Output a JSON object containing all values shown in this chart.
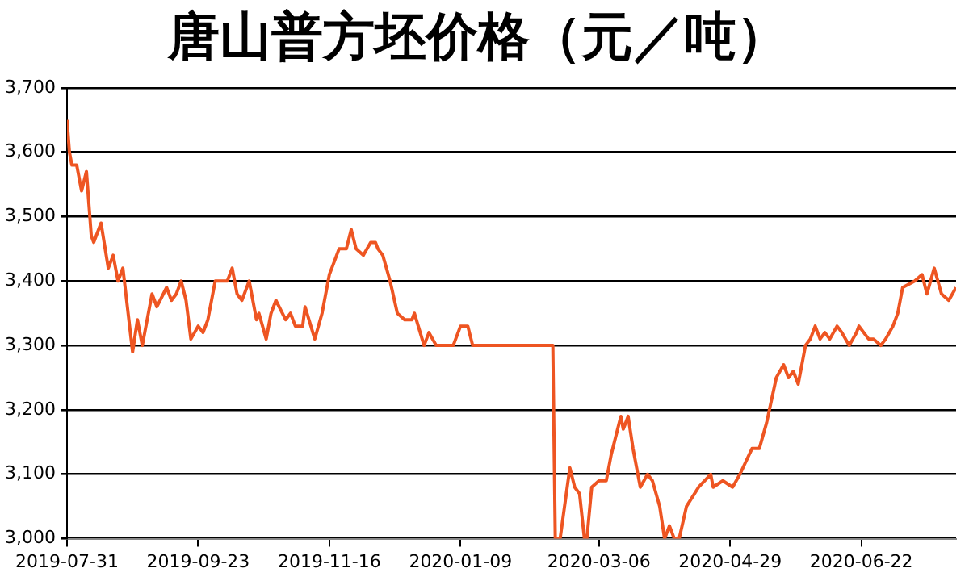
{
  "chart_data": {
    "type": "line",
    "title": "唐山普方坯价格（元／吨）",
    "color": "#ee5522",
    "marker": "none",
    "grid": "y",
    "legend": false,
    "x": [
      "2019-07-31",
      "2019-08-01",
      "2019-08-02",
      "2019-08-04",
      "2019-08-06",
      "2019-08-08",
      "2019-08-10",
      "2019-08-11",
      "2019-08-14",
      "2019-08-17",
      "2019-08-19",
      "2019-08-21",
      "2019-08-23",
      "2019-08-27",
      "2019-08-29",
      "2019-08-31",
      "2019-09-01",
      "2019-09-04",
      "2019-09-06",
      "2019-09-10",
      "2019-09-12",
      "2019-09-14",
      "2019-09-16",
      "2019-09-18",
      "2019-09-20",
      "2019-09-23",
      "2019-09-25",
      "2019-09-27",
      "2019-09-30",
      "2019-10-05",
      "2019-10-07",
      "2019-10-09",
      "2019-10-11",
      "2019-10-14",
      "2019-10-17",
      "2019-10-18",
      "2019-10-21",
      "2019-10-23",
      "2019-10-25",
      "2019-10-29",
      "2019-10-31",
      "2019-11-02",
      "2019-11-05",
      "2019-11-06",
      "2019-11-10",
      "2019-11-13",
      "2019-11-16",
      "2019-11-18",
      "2019-11-20",
      "2019-11-23",
      "2019-11-25",
      "2019-11-27",
      "2019-11-30",
      "2019-12-03",
      "2019-12-05",
      "2019-12-06",
      "2019-12-08",
      "2019-12-11",
      "2019-12-14",
      "2019-12-17",
      "2019-12-20",
      "2019-12-21",
      "2019-12-25",
      "2019-12-27",
      "2019-12-30",
      "2020-01-06",
      "2020-01-09",
      "2020-01-12",
      "2020-01-14",
      "2020-01-17",
      "2020-02-16",
      "2020-02-17",
      "2020-02-19",
      "2020-02-23",
      "2020-02-25",
      "2020-02-27",
      "2020-02-29",
      "2020-03-01",
      "2020-03-03",
      "2020-03-06",
      "2020-03-09",
      "2020-03-11",
      "2020-03-15",
      "2020-03-16",
      "2020-03-18",
      "2020-03-20",
      "2020-03-23",
      "2020-03-26",
      "2020-03-28",
      "2020-03-31",
      "2020-04-02",
      "2020-04-04",
      "2020-04-06",
      "2020-04-08",
      "2020-04-11",
      "2020-04-16",
      "2020-04-21",
      "2020-04-22",
      "2020-04-26",
      "2020-04-30",
      "2020-05-03",
      "2020-05-08",
      "2020-05-11",
      "2020-05-14",
      "2020-05-18",
      "2020-05-21",
      "2020-05-23",
      "2020-05-25",
      "2020-05-27",
      "2020-05-30",
      "2020-06-01",
      "2020-06-03",
      "2020-06-05",
      "2020-06-07",
      "2020-06-09",
      "2020-06-12",
      "2020-06-14",
      "2020-06-17",
      "2020-06-20",
      "2020-06-21",
      "2020-06-23",
      "2020-06-25",
      "2020-06-27",
      "2020-06-30",
      "2020-07-02",
      "2020-07-05",
      "2020-07-07",
      "2020-07-09",
      "2020-07-14",
      "2020-07-17",
      "2020-07-19",
      "2020-07-22",
      "2020-07-25",
      "2020-07-28",
      "2020-07-31"
    ],
    "values": [
      3650,
      3600,
      3580,
      3580,
      3540,
      3570,
      3470,
      3460,
      3490,
      3420,
      3440,
      3400,
      3420,
      3290,
      3340,
      3300,
      3320,
      3380,
      3360,
      3390,
      3370,
      3380,
      3400,
      3370,
      3310,
      3330,
      3320,
      3340,
      3400,
      3400,
      3420,
      3380,
      3370,
      3400,
      3340,
      3350,
      3310,
      3350,
      3370,
      3340,
      3350,
      3330,
      3330,
      3360,
      3310,
      3350,
      3410,
      3430,
      3450,
      3450,
      3480,
      3450,
      3440,
      3460,
      3460,
      3450,
      3440,
      3400,
      3350,
      3340,
      3340,
      3350,
      3300,
      3320,
      3300,
      3300,
      3330,
      3330,
      3300,
      3300,
      3300,
      3000,
      3000,
      3110,
      3080,
      3070,
      3000,
      3000,
      3080,
      3090,
      3090,
      3130,
      3190,
      3170,
      3190,
      3140,
      3080,
      3100,
      3090,
      3050,
      3000,
      3020,
      3000,
      3000,
      3050,
      3080,
      3100,
      3080,
      3090,
      3080,
      3100,
      3140,
      3140,
      3180,
      3250,
      3270,
      3250,
      3260,
      3240,
      3300,
      3310,
      3330,
      3310,
      3320,
      3310,
      3330,
      3320,
      3300,
      3320,
      3330,
      3320,
      3310,
      3310,
      3300,
      3310,
      3330,
      3350,
      3390,
      3400,
      3410,
      3380,
      3420,
      3380,
      3370,
      3390
    ],
    "xlim": [
      "2019-07-31",
      "2020-07-31"
    ],
    "xticks": [
      "2019-07-31",
      "2019-09-23",
      "2019-11-16",
      "2020-01-09",
      "2020-03-06",
      "2020-04-29",
      "2020-06-22"
    ],
    "ylim": [
      3000,
      3700
    ],
    "yticks": [
      {
        "value": 3000,
        "label": "3,000"
      },
      {
        "value": 3100,
        "label": "3,100"
      },
      {
        "value": 3200,
        "label": "3,200"
      },
      {
        "value": 3300,
        "label": "3,300"
      },
      {
        "value": 3400,
        "label": "3,400"
      },
      {
        "value": 3500,
        "label": "3,500"
      },
      {
        "value": 3600,
        "label": "3,600"
      },
      {
        "value": 3700,
        "label": "3,700"
      }
    ]
  }
}
